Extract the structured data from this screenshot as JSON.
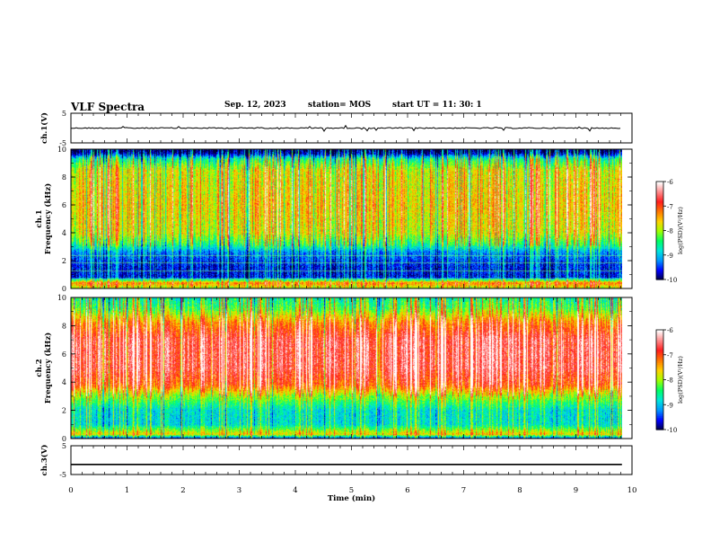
{
  "header": {
    "title": "VLF Spectra",
    "date": "Sep. 12, 2023",
    "station": "station= MOS",
    "start_ut": "start  UT  =    11: 30: 1"
  },
  "colors": {
    "spectrogram_scale": [
      "#00003c",
      "#0000ff",
      "#0096ff",
      "#00e6dc",
      "#00ff64",
      "#a0ff00",
      "#ffd200",
      "#ff7800",
      "#ff1e1e",
      "#ff8c8c",
      "#ffffff"
    ]
  },
  "chart_data": [
    {
      "type": "line",
      "panel": "ch1-waveform",
      "ylabel": "ch.1(V)",
      "ylim": [
        -5,
        5
      ],
      "yticks": [
        "5",
        "-5"
      ],
      "x": [
        0,
        10
      ],
      "baseline_value": 0,
      "note_signal": "impulsive"
    },
    {
      "type": "heatmap",
      "panel": "ch1-spectrogram",
      "ylabel": "ch.1\nFrequency (kHz)",
      "ylim": [
        0,
        10
      ],
      "yticks": [
        "0",
        "2",
        "4",
        "6",
        "8",
        "10"
      ],
      "xlim": [
        0,
        10
      ],
      "colorbar": {
        "label": "log(PSD)(V²/Hz)",
        "range": [
          -10,
          -6
        ],
        "ticks": [
          "-6",
          "-7",
          "-8",
          "-9",
          "-10"
        ]
      },
      "profile": [
        {
          "f": 0.0,
          "v": -8.0
        },
        {
          "f": 0.4,
          "v": -7.2
        },
        {
          "f": 0.8,
          "v": -9.6
        },
        {
          "f": 1.6,
          "v": -9.6
        },
        {
          "f": 2.6,
          "v": -9.2
        },
        {
          "f": 3.2,
          "v": -8.4
        },
        {
          "f": 4.0,
          "v": -7.8
        },
        {
          "f": 6.0,
          "v": -7.6
        },
        {
          "f": 8.5,
          "v": -7.8
        },
        {
          "f": 9.3,
          "v": -8.6
        },
        {
          "f": 9.7,
          "v": -9.8
        },
        {
          "f": 10.0,
          "v": -10.0
        }
      ]
    },
    {
      "type": "heatmap",
      "panel": "ch2-spectrogram",
      "ylabel": "ch.2\nFrequency (kHz)",
      "ylim": [
        0,
        10
      ],
      "yticks": [
        "0",
        "2",
        "4",
        "6",
        "8",
        "10"
      ],
      "xlim": [
        0,
        10
      ],
      "colorbar": {
        "label": "log(PSD)(V²/Hz)",
        "range": [
          -10,
          -6
        ],
        "ticks": [
          "-6",
          "-7",
          "-8",
          "-9",
          "-10"
        ]
      },
      "profile": [
        {
          "f": 0.0,
          "v": -9.6
        },
        {
          "f": 0.3,
          "v": -7.6
        },
        {
          "f": 1.0,
          "v": -8.8
        },
        {
          "f": 2.0,
          "v": -8.8
        },
        {
          "f": 3.0,
          "v": -8.0
        },
        {
          "f": 3.8,
          "v": -7.0
        },
        {
          "f": 5.0,
          "v": -6.6
        },
        {
          "f": 7.0,
          "v": -6.6
        },
        {
          "f": 8.2,
          "v": -7.2
        },
        {
          "f": 9.2,
          "v": -8.2
        },
        {
          "f": 10.0,
          "v": -8.6
        }
      ]
    },
    {
      "type": "line",
      "panel": "ch3-waveform",
      "ylabel": "ch.3(V)",
      "ylim": [
        -5,
        5
      ],
      "yticks": [
        "5",
        "-5"
      ],
      "x": [
        0,
        10
      ],
      "baseline_value": -1.5
    }
  ],
  "x_axis": {
    "label": "Time  (min)",
    "ticks": [
      "0",
      "1",
      "2",
      "3",
      "4",
      "5",
      "6",
      "7",
      "8",
      "9",
      "10"
    ],
    "range": [
      0,
      10
    ]
  }
}
